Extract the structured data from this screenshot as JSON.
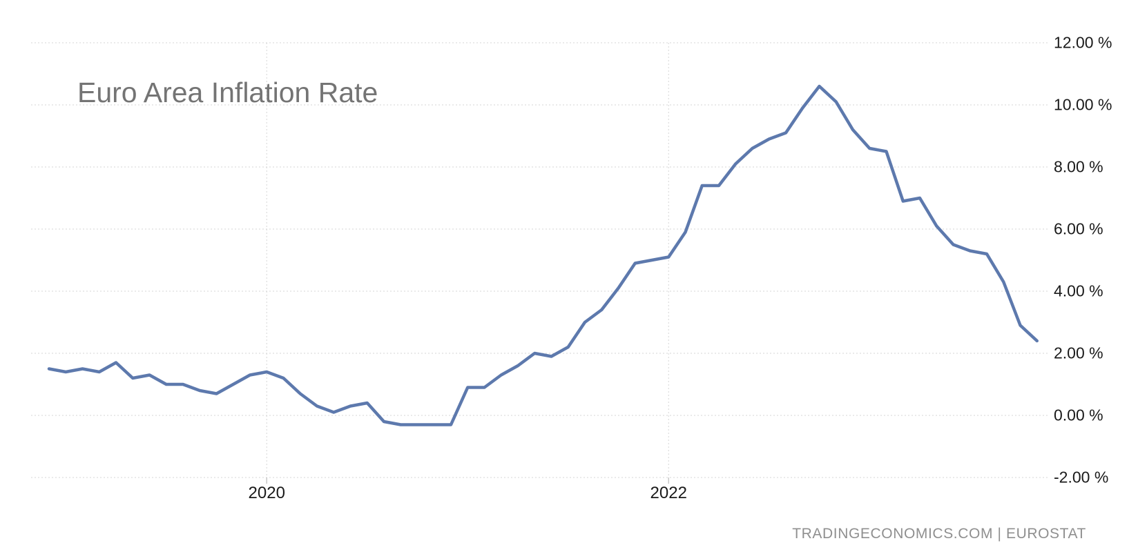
{
  "chart_data": {
    "type": "line",
    "title": "Euro Area Inflation Rate",
    "source_label": "TRADINGECONOMICS.COM | EUROSTAT",
    "ylabel": "",
    "xlabel": "",
    "ylim": [
      -2,
      12
    ],
    "grid": "dotted",
    "legend": "none",
    "line_color": "#5d79ad",
    "grid_color": "#d5d5d5",
    "tick_color": "#c8c8c8",
    "x": [
      "2018-12",
      "2019-01",
      "2019-02",
      "2019-03",
      "2019-04",
      "2019-05",
      "2019-06",
      "2019-07",
      "2019-08",
      "2019-09",
      "2019-10",
      "2019-11",
      "2019-12",
      "2020-01",
      "2020-02",
      "2020-03",
      "2020-04",
      "2020-05",
      "2020-06",
      "2020-07",
      "2020-08",
      "2020-09",
      "2020-10",
      "2020-11",
      "2020-12",
      "2021-01",
      "2021-02",
      "2021-03",
      "2021-04",
      "2021-05",
      "2021-06",
      "2021-07",
      "2021-08",
      "2021-09",
      "2021-10",
      "2021-11",
      "2021-12",
      "2022-01",
      "2022-02",
      "2022-03",
      "2022-04",
      "2022-05",
      "2022-06",
      "2022-07",
      "2022-08",
      "2022-09",
      "2022-10",
      "2022-11",
      "2022-12",
      "2023-01",
      "2023-02",
      "2023-03",
      "2023-04",
      "2023-05",
      "2023-06",
      "2023-07",
      "2023-08",
      "2023-09",
      "2023-10",
      "2023-11"
    ],
    "values": [
      1.5,
      1.4,
      1.5,
      1.4,
      1.7,
      1.2,
      1.3,
      1.0,
      1.0,
      0.8,
      0.7,
      1.0,
      1.3,
      1.4,
      1.2,
      0.7,
      0.3,
      0.1,
      0.3,
      0.4,
      -0.2,
      -0.3,
      -0.3,
      -0.3,
      -0.3,
      0.9,
      0.9,
      1.3,
      1.6,
      2.0,
      1.9,
      2.2,
      3.0,
      3.4,
      4.1,
      4.9,
      5.0,
      5.1,
      5.9,
      7.4,
      7.4,
      8.1,
      8.6,
      8.9,
      9.1,
      9.9,
      10.6,
      10.1,
      9.2,
      8.6,
      8.5,
      6.9,
      7.0,
      6.1,
      5.5,
      5.3,
      5.2,
      4.3,
      2.9,
      2.4
    ],
    "yticks": [
      {
        "value": 12,
        "label": "12.00 %"
      },
      {
        "value": 10,
        "label": "10.00 %"
      },
      {
        "value": 8,
        "label": "8.00 %"
      },
      {
        "value": 6,
        "label": "6.00 %"
      },
      {
        "value": 4,
        "label": "4.00 %"
      },
      {
        "value": 2,
        "label": "2.00 %"
      },
      {
        "value": 0,
        "label": "0.00 %"
      },
      {
        "value": -2,
        "label": "-2.00 %"
      }
    ],
    "xticks": [
      {
        "label": "2020",
        "at": "2020-01"
      },
      {
        "label": "2022",
        "at": "2022-01"
      }
    ]
  }
}
